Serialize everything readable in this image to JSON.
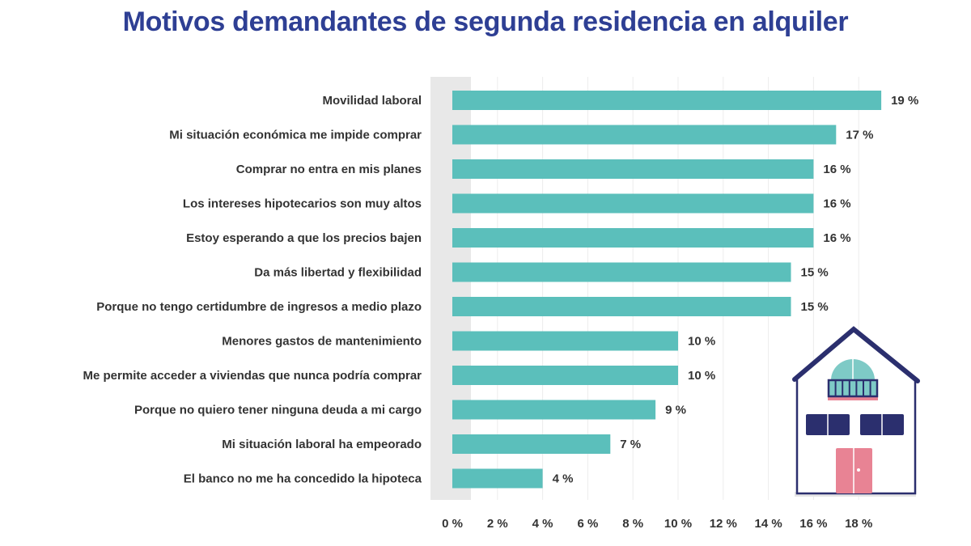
{
  "chart_data": {
    "type": "bar",
    "orientation": "horizontal",
    "title": "Motivos demandantes de segunda residencia en alquiler",
    "categories": [
      "Movilidad laboral",
      "Mi situación económica me impide comprar",
      "Comprar no entra en mis planes",
      "Los intereses hipotecarios son muy altos",
      "Estoy esperando a que los precios bajen",
      "Da más libertad y flexibilidad",
      "Porque no tengo certidumbre de ingresos a medio plazo",
      "Menores gastos de mantenimiento",
      "Me permite acceder a viviendas que nunca podría comprar",
      "Porque no quiero tener ninguna deuda a mi cargo",
      "Mi situación laboral ha empeorado",
      "El banco no me ha concedido la hipoteca"
    ],
    "values": [
      19,
      17,
      16,
      16,
      16,
      15,
      15,
      10,
      10,
      9,
      7,
      4
    ],
    "data_labels": [
      "19 %",
      "17 %",
      "16 %",
      "16 %",
      "16 %",
      "15 %",
      "15 %",
      "10 %",
      "10 %",
      "9 %",
      "7 %",
      "4 %"
    ],
    "xticks": [
      "0 %",
      "2 %",
      "4 %",
      "6 %",
      "8 %",
      "10 %",
      "12 %",
      "14 %",
      "16 %",
      "18 %"
    ],
    "xlim": [
      0,
      19
    ],
    "grid": true,
    "bar_color": "#5bbfbb",
    "title_color": "#2e3f94",
    "decoration": "house-illustration"
  }
}
